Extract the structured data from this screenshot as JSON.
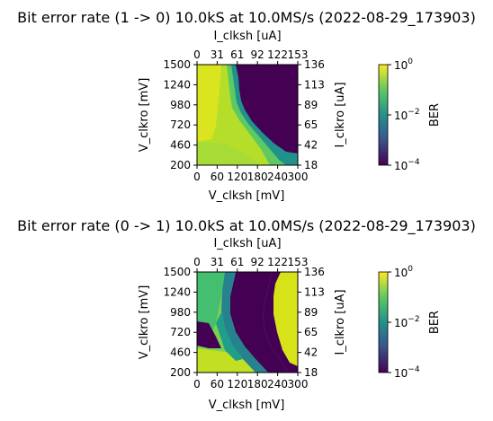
{
  "chart_data": [
    {
      "type": "heatmap",
      "title": "Bit error rate (1 -> 0) 10.0kS at 10.0MS/s (2022-08-29_173903)",
      "xlabel": "V_clksh [mV]",
      "ylabel": "V_clkro [mV]",
      "secondary_xlabel": "I_clksh [uA]",
      "secondary_ylabel": "I_clkro [uA]",
      "x_ticks": [
        "0",
        "60",
        "120",
        "180",
        "240",
        "300"
      ],
      "y_ticks": [
        "200",
        "460",
        "720",
        "980",
        "1240",
        "1500"
      ],
      "secondary_x_ticks": [
        "0",
        "31",
        "61",
        "92",
        "122",
        "153"
      ],
      "secondary_y_ticks": [
        "18",
        "42",
        "65",
        "89",
        "113",
        "136"
      ],
      "xlim": [
        0,
        300
      ],
      "ylim": [
        200,
        1500
      ],
      "colorbar": {
        "label": "BER",
        "scale": "log",
        "range": [
          0.0001,
          1
        ],
        "ticks": [
          "10^-4",
          "10^-2",
          "10^0"
        ]
      },
      "regions": [
        {
          "value": 0.0001,
          "description": "V_clksh from about 90 to 300 mV and V_clkro above about 360 mV, bounded on the left by a boundary moving from about 130 mV at 1500 mV down toward 180 mV near 600 mV"
        },
        {
          "value": 1,
          "description": "low V_clksh and low V_clkro"
        }
      ]
    },
    {
      "type": "heatmap",
      "title": "Bit error rate (0 -> 1) 10.0kS at 10.0MS/s (2022-08-29_173903)",
      "xlabel": "V_clksh [mV]",
      "ylabel": "V_clkro [mV]",
      "secondary_xlabel": "I_clksh [uA]",
      "secondary_ylabel": "I_clkro [uA]",
      "x_ticks": [
        "0",
        "60",
        "120",
        "180",
        "240",
        "300"
      ],
      "y_ticks": [
        "200",
        "460",
        "720",
        "980",
        "1240",
        "1500"
      ],
      "secondary_x_ticks": [
        "0",
        "31",
        "61",
        "92",
        "122",
        "153"
      ],
      "secondary_y_ticks": [
        "18",
        "42",
        "65",
        "89",
        "113",
        "136"
      ],
      "xlim": [
        0,
        300
      ],
      "ylim": [
        200,
        1500
      ],
      "colorbar": {
        "label": "BER",
        "scale": "log",
        "range": [
          0.0001,
          1
        ],
        "ticks": [
          "10^-4",
          "10^-2",
          "10^0"
        ]
      },
      "regions": [
        {
          "value": 0.0001,
          "description": "diagonal band from about (120 mV, 1500 mV) to (250 mV, 300 mV)"
        },
        {
          "value": 1,
          "description": "V_clksh above about 240 mV in the upper part of the plot"
        }
      ]
    }
  ]
}
